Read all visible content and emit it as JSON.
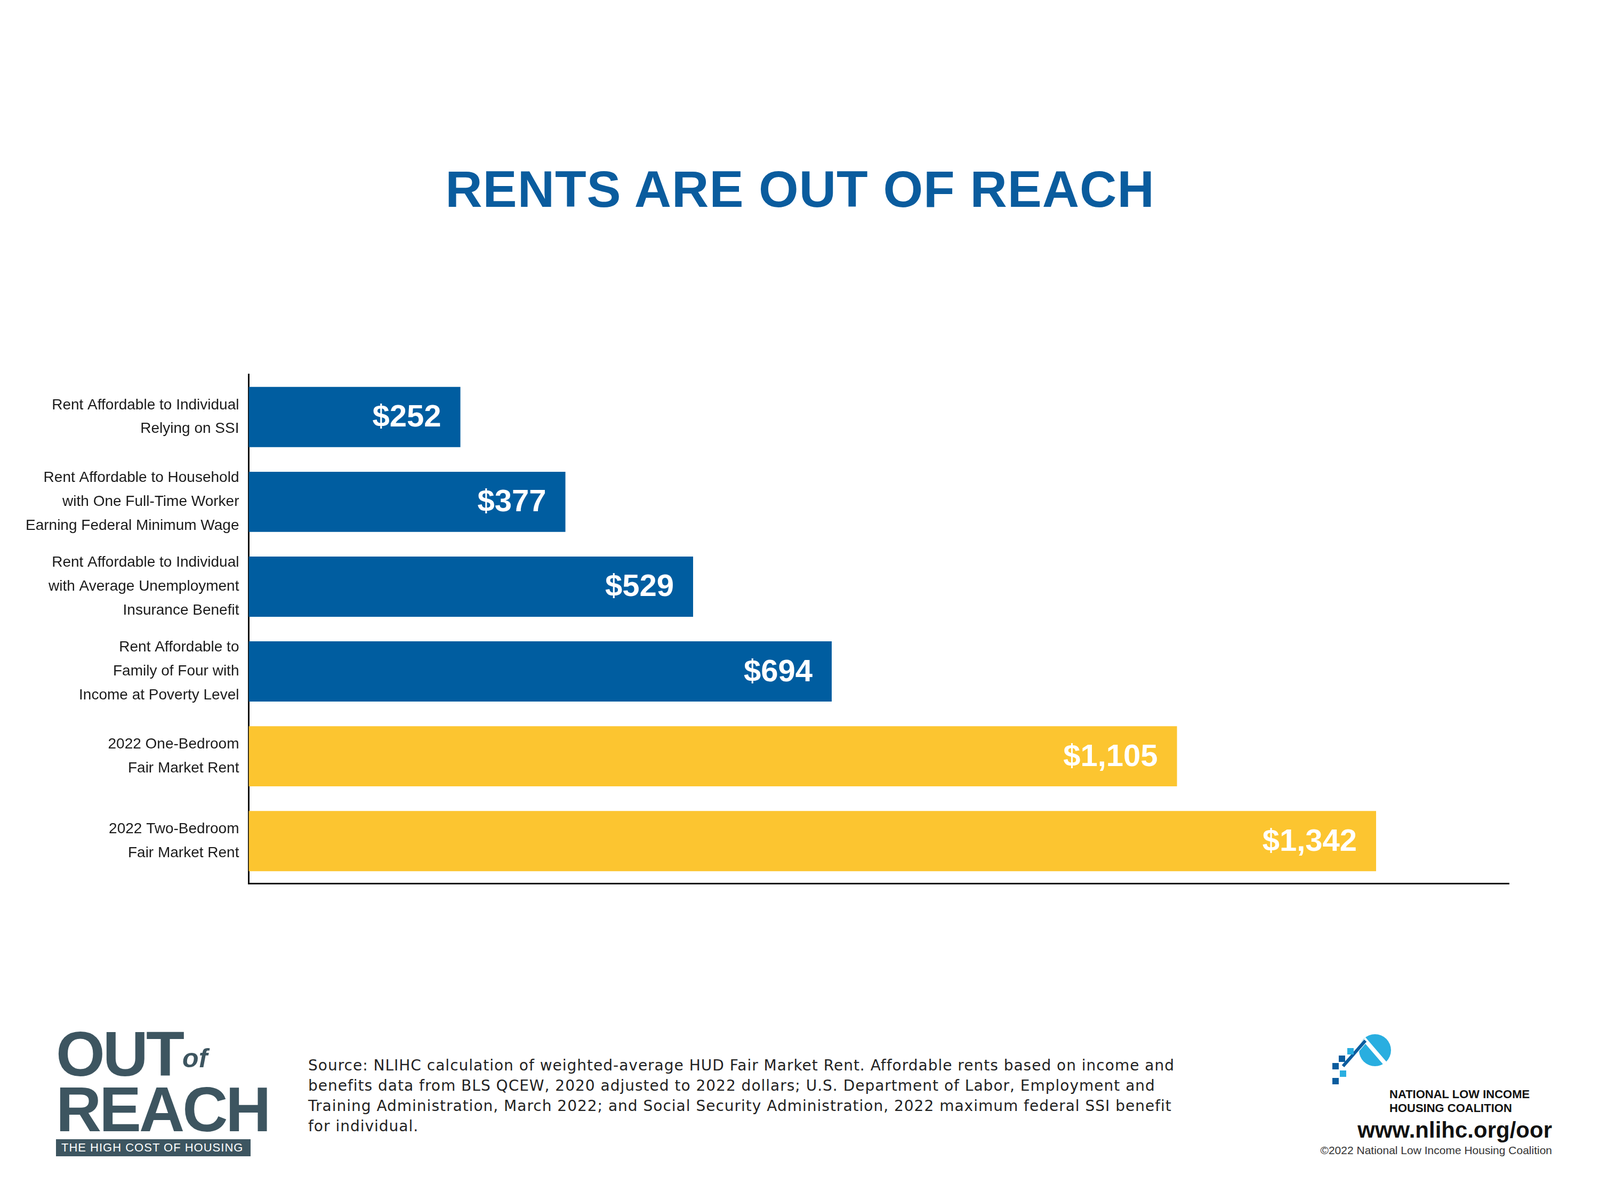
{
  "chart_data": {
    "type": "bar",
    "orientation": "horizontal",
    "title": "RENTS ARE OUT OF REACH",
    "categories": [
      [
        "Rent Affordable to Individual",
        "Relying on SSI"
      ],
      [
        "Rent Affordable to Household",
        "with One Full-Time Worker",
        "Earning Federal Minimum Wage"
      ],
      [
        "Rent Affordable to Individual",
        "with Average Unemployment",
        "Insurance Benefit"
      ],
      [
        "Rent Affordable to",
        "Family of Four with",
        "Income at Poverty Level"
      ],
      [
        "2022 One-Bedroom",
        "Fair Market Rent"
      ],
      [
        "2022 Two-Bedroom",
        "Fair Market Rent"
      ]
    ],
    "values": [
      252,
      377,
      529,
      694,
      1105,
      1342
    ],
    "value_labels": [
      "$252",
      "$377",
      "$529",
      "$694",
      "$1,105",
      "$1,342"
    ],
    "colors": [
      "#005da0",
      "#005da0",
      "#005da0",
      "#005da0",
      "#fcc530",
      "#fcc530"
    ],
    "data_labels": true,
    "tick_labels": "y",
    "grid": false,
    "xlim": [
      0,
      1500
    ]
  },
  "source": "Source: NLIHC calculation of weighted-average HUD Fair Market Rent. Affordable rents based on income and benefits data from BLS QCEW, 2020 adjusted to 2022 dollars; U.S. Department of Labor, Employment and Training Administration, March 2022; and Social Security Administration, 2022 maximum federal SSI benefit for individual.",
  "logo": {
    "line1": "OUT",
    "line1_small": "of",
    "line2": "REACH",
    "tagline": "THE HIGH COST OF HOUSING"
  },
  "organization": {
    "name_lines": [
      "NATIONAL LOW INCOME",
      "HOUSING COALITION"
    ],
    "url": "www.nlihc.org/oor",
    "copyright": "©2022 National Low Income Housing Coalition"
  }
}
